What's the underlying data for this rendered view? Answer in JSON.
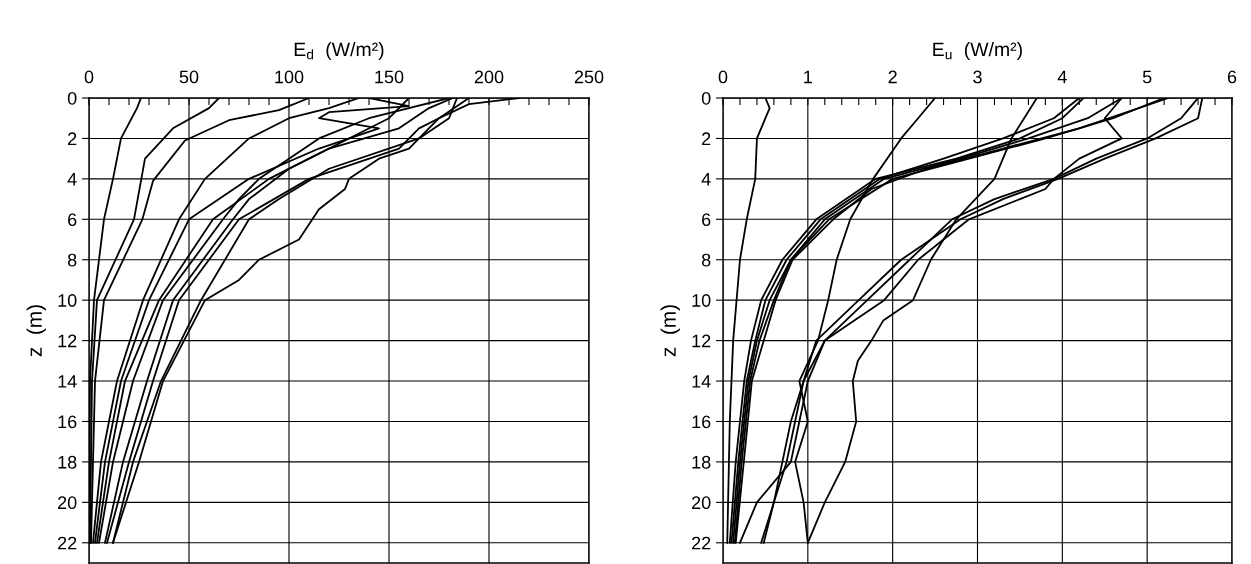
{
  "chart_data": [
    {
      "type": "line",
      "xlabel": "E$_{d}$  (W/m²)",
      "ylabel": "z  (m)",
      "xlim": [
        0,
        250
      ],
      "ylim": [
        23,
        0
      ],
      "xticks": [
        0,
        {
          "value": 10,
          "label": null
        },
        {
          "value": 20,
          "label": null
        },
        {
          "value": 30,
          "label": null
        },
        {
          "value": 40,
          "label": null
        },
        50,
        {
          "value": 60,
          "label": null
        },
        {
          "value": 70,
          "label": null
        },
        {
          "value": 80,
          "label": null
        },
        {
          "value": 90,
          "label": null
        },
        100,
        {
          "value": 110,
          "label": null
        },
        {
          "value": 120,
          "label": null
        },
        {
          "value": 130,
          "label": null
        },
        {
          "value": 140,
          "label": null
        },
        150,
        {
          "value": 160,
          "label": null
        },
        {
          "value": 170,
          "label": null
        },
        {
          "value": 180,
          "label": null
        },
        {
          "value": 190,
          "label": null
        },
        200,
        {
          "value": 210,
          "label": null
        },
        {
          "value": 220,
          "label": null
        },
        {
          "value": 230,
          "label": null
        },
        {
          "value": 240,
          "label": null
        },
        250
      ],
      "yticks": [
        0,
        2,
        4,
        6,
        8,
        10,
        12,
        14,
        16,
        18,
        20,
        22
      ],
      "grid": true,
      "marker": "none",
      "line_style": "solid",
      "series": [
        {
          "color": "#000000",
          "x": [
            26,
            24,
            16,
            12,
            7.5,
            2.5,
            0.5,
            0.3,
            0.2
          ],
          "values": [
            0,
            0.5,
            2,
            4,
            6,
            10,
            14,
            18,
            22
          ]
        },
        {
          "color": "#000000",
          "x": [
            65,
            60,
            42,
            28,
            22.5,
            4,
            1.5,
            1,
            0.5
          ],
          "values": [
            0,
            0.5,
            1.5,
            3,
            6,
            10,
            14,
            18,
            22
          ]
        },
        {
          "color": "#000000",
          "x": [
            110,
            95,
            70,
            48,
            32,
            26.7,
            7.5,
            3,
            2,
            1
          ],
          "values": [
            0,
            0.6,
            1.1,
            2.1,
            4.1,
            6,
            10,
            14,
            18,
            22
          ]
        },
        {
          "color": "#000000",
          "x": [
            135,
            120,
            100,
            80,
            58,
            45,
            27,
            14,
            6,
            2
          ],
          "values": [
            0,
            0.5,
            1,
            2,
            4,
            6,
            10,
            14,
            18,
            22
          ]
        },
        {
          "color": "#000000",
          "x": [
            140,
            160,
            120,
            115,
            145,
            115,
            80,
            50,
            30,
            16,
            8,
            3
          ],
          "values": [
            0,
            0.4,
            0.7,
            1,
            1.5,
            2.5,
            4,
            6,
            10,
            14,
            18,
            22
          ]
        },
        {
          "color": "#000000",
          "x": [
            160,
            150,
            130,
            110,
            90,
            62,
            35,
            18,
            10,
            4
          ],
          "values": [
            0,
            1,
            2,
            3,
            4,
            6,
            10,
            14,
            18,
            22
          ]
        },
        {
          "color": "#000000",
          "x": [
            180,
            140,
            115,
            100,
            85,
            75,
            67,
            37,
            22,
            12,
            5
          ],
          "values": [
            0,
            1,
            2,
            3,
            4,
            5,
            6,
            10,
            14,
            18,
            22
          ]
        },
        {
          "color": "#000000",
          "x": [
            182,
            170,
            155,
            120,
            100,
            80,
            72,
            42,
            29,
            17,
            8
          ],
          "values": [
            0,
            0.5,
            1.5,
            2.5,
            3.5,
            5,
            6,
            10,
            14,
            18,
            22
          ]
        },
        {
          "color": "#000000",
          "x": [
            190,
            175,
            165,
            155,
            110,
            75,
            45,
            32,
            20,
            9
          ],
          "values": [
            0,
            1,
            1.5,
            2.5,
            4,
            6,
            10,
            14,
            18,
            22
          ]
        },
        {
          "color": "#000000",
          "x": [
            184,
            180,
            165,
            120,
            95,
            80,
            56,
            36,
            22,
            12
          ],
          "values": [
            0,
            1,
            2,
            3.5,
            5,
            6,
            10,
            14,
            18,
            22
          ]
        },
        {
          "color": "#000000",
          "x": [
            215,
            190,
            175,
            165,
            160,
            145,
            130,
            128,
            115,
            105,
            85,
            75,
            58,
            37,
            25,
            12
          ],
          "values": [
            0,
            0.3,
            1,
            2,
            2.5,
            3,
            4,
            4.5,
            5.5,
            7,
            8,
            9,
            10,
            14,
            18,
            22
          ]
        }
      ]
    },
    {
      "type": "line",
      "xlabel": "E$_{u}$  (W/m²)",
      "ylabel": "z  (m)",
      "xlim": [
        0,
        6
      ],
      "ylim": [
        23,
        0
      ],
      "xticks": [
        0,
        {
          "value": 0.2,
          "label": null
        },
        {
          "value": 0.4,
          "label": null
        },
        {
          "value": 0.6,
          "label": null
        },
        {
          "value": 0.8,
          "label": null
        },
        1,
        {
          "value": 1.2,
          "label": null
        },
        {
          "value": 1.4,
          "label": null
        },
        {
          "value": 1.6,
          "label": null
        },
        {
          "value": 1.8,
          "label": null
        },
        2,
        {
          "value": 2.2,
          "label": null
        },
        {
          "value": 2.4,
          "label": null
        },
        {
          "value": 2.6,
          "label": null
        },
        {
          "value": 2.8,
          "label": null
        },
        3,
        {
          "value": 3.2,
          "label": null
        },
        {
          "value": 3.4,
          "label": null
        },
        {
          "value": 3.6,
          "label": null
        },
        {
          "value": 3.8,
          "label": null
        },
        4,
        {
          "value": 4.2,
          "label": null
        },
        {
          "value": 4.4,
          "label": null
        },
        {
          "value": 4.6,
          "label": null
        },
        {
          "value": 4.8,
          "label": null
        },
        5,
        {
          "value": 5.2,
          "label": null
        },
        {
          "value": 5.4,
          "label": null
        },
        {
          "value": 5.6,
          "label": null
        },
        {
          "value": 5.8,
          "label": null
        },
        6
      ],
      "yticks": [
        0,
        2,
        4,
        6,
        8,
        10,
        12,
        14,
        16,
        18,
        20,
        22
      ],
      "grid": true,
      "marker": "none",
      "line_style": "solid",
      "series": [
        {
          "color": "#000000",
          "x": [
            0.5,
            0.55,
            0.5,
            0.4,
            0.38,
            0.28,
            0.2,
            0.12,
            0.08,
            0.05
          ],
          "values": [
            0,
            0.5,
            1,
            2,
            4,
            6,
            8,
            12,
            16,
            22
          ]
        },
        {
          "color": "#000000",
          "x": [
            2.5,
            2.3,
            2.1,
            1.77,
            1.5,
            1.34,
            1.24,
            1.12,
            0.9,
            1.0,
            0.85,
            0.95,
            1.0
          ],
          "values": [
            0,
            1,
            2,
            4,
            6,
            8,
            10,
            12,
            14,
            16,
            18,
            20,
            22
          ]
        },
        {
          "color": "#000000",
          "x": [
            3.7,
            3.55,
            3.4,
            3.2,
            2.75,
            2.45,
            2.24,
            1.89,
            1.75,
            1.59,
            1.53,
            1.57,
            1.44,
            1.2,
            1.0
          ],
          "values": [
            0,
            1,
            2,
            4,
            6,
            8,
            10,
            11,
            12,
            13,
            14,
            16,
            18,
            20,
            22
          ]
        },
        {
          "color": "#000000",
          "x": [
            4.2,
            3.9,
            3.3,
            2.6,
            1.85,
            1.5,
            1.15,
            0.75,
            0.5,
            0.38,
            0.28,
            0.18,
            0.1
          ],
          "values": [
            0,
            1,
            2,
            3,
            4,
            5,
            6,
            8,
            10,
            12,
            14,
            18,
            22
          ]
        },
        {
          "color": "#000000",
          "x": [
            4.25,
            4.0,
            3.5,
            2.75,
            1.8,
            1.45,
            1.1,
            0.7,
            0.45,
            0.33,
            0.25,
            0.15,
            0.08
          ],
          "values": [
            0,
            1,
            2,
            3,
            4,
            5,
            6,
            8,
            10,
            12,
            14,
            18,
            22
          ]
        },
        {
          "color": "#000000",
          "x": [
            4.7,
            4.3,
            3.6,
            2.8,
            1.9,
            1.2,
            0.8,
            0.55,
            0.4,
            0.3,
            0.2,
            0.12
          ],
          "values": [
            0,
            1,
            2,
            3,
            4,
            6,
            8,
            10,
            12,
            14,
            18,
            22
          ]
        },
        {
          "color": "#000000",
          "x": [
            5.2,
            4.6,
            3.8,
            2.9,
            2.0,
            1.25,
            0.8,
            0.6,
            0.43,
            0.32,
            0.22,
            0.14
          ],
          "values": [
            0,
            1,
            2,
            3,
            4,
            6,
            8,
            10,
            12,
            14,
            18,
            22
          ]
        },
        {
          "color": "#000000",
          "x": [
            5.25,
            4.9,
            4.2,
            3.3,
            2.4,
            1.75,
            1.3,
            0.82,
            0.62,
            0.34,
            0.15
          ],
          "values": [
            0,
            0.5,
            1.5,
            2.5,
            3.5,
            4.5,
            6,
            8,
            10,
            14,
            22
          ]
        },
        {
          "color": "#000000",
          "x": [
            4.7,
            4.5,
            4.7,
            4.2,
            3.9,
            3.8,
            3.5,
            2.9,
            2.3,
            1.9,
            1.2,
            1.0,
            0.9,
            0.8,
            0.4,
            0.2
          ],
          "values": [
            0,
            1,
            2,
            3,
            4,
            4.5,
            5,
            6,
            8,
            10,
            12,
            14,
            16,
            18,
            20,
            22
          ]
        },
        {
          "color": "#000000",
          "x": [
            5.6,
            5.5,
            5.4,
            5.0,
            4.4,
            3.9,
            3.2,
            2.7,
            2.2,
            1.7,
            1.2,
            0.95,
            0.85,
            0.75,
            0.6,
            0.45
          ],
          "values": [
            0,
            0.5,
            1,
            2,
            3,
            4,
            5,
            6,
            8,
            10,
            12,
            14,
            16,
            18,
            20,
            22
          ]
        },
        {
          "color": "#000000",
          "x": [
            5.65,
            5.6,
            5.1,
            4.5,
            3.95,
            3.3,
            2.8,
            2.1,
            1.6,
            1.1,
            0.95,
            0.8,
            0.7,
            0.6,
            0.48
          ],
          "values": [
            0,
            1,
            2,
            3,
            4,
            5,
            6,
            8,
            10,
            12,
            14,
            16,
            18,
            20,
            22
          ]
        }
      ]
    }
  ]
}
